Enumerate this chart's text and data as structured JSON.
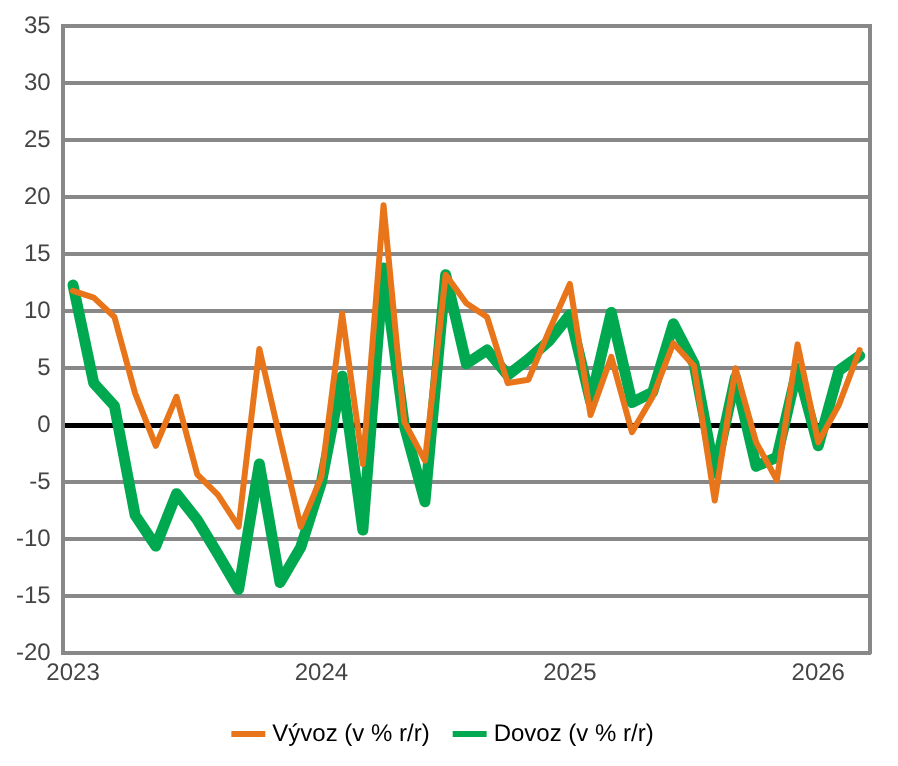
{
  "chart_data": {
    "type": "line",
    "categories": [
      "2023",
      null,
      null,
      null,
      null,
      null,
      null,
      null,
      null,
      null,
      null,
      null,
      "2024",
      null,
      null,
      null,
      null,
      null,
      null,
      null,
      null,
      null,
      null,
      null,
      "2025",
      null,
      null,
      null,
      null,
      null,
      null,
      null,
      null,
      null,
      null,
      null,
      "2026",
      null,
      null
    ],
    "series": [
      {
        "name": "Vývoz (v % r/r)",
        "color": "#e8751a",
        "values": [
          11.8,
          11.2,
          9.5,
          2.8,
          -1.8,
          2.5,
          -4.3,
          -6.1,
          -8.9,
          6.7,
          -1.2,
          -8.9,
          -4.5,
          9.8,
          -3.4,
          19.3,
          0.3,
          -3.1,
          13.2,
          10.7,
          9.5,
          3.7,
          4.0,
          8.3,
          12.4,
          0.9,
          6.0,
          -0.6,
          2.5,
          7.2,
          5.2,
          -6.6,
          5.0,
          -1.5,
          -4.8,
          7.1,
          -1.5,
          1.8,
          6.6
        ]
      },
      {
        "name": "Dovoz (v % r/r)",
        "color": "#00a84f",
        "values": [
          12.3,
          3.7,
          1.7,
          -7.9,
          -10.6,
          -6.0,
          -8.3,
          -11.3,
          -14.4,
          -3.4,
          -13.8,
          -10.7,
          -5.0,
          4.3,
          -9.2,
          13.8,
          0.0,
          -6.7,
          13.2,
          5.4,
          6.6,
          4.4,
          5.8,
          7.4,
          9.7,
          2.1,
          9.9,
          2.0,
          2.9,
          8.9,
          5.4,
          -4.2,
          4.2,
          -3.6,
          -2.8,
          5.0,
          -1.8,
          4.8,
          6.1
        ]
      }
    ],
    "ylim": [
      -20,
      35
    ],
    "yticks": [
      -20,
      -15,
      -10,
      -5,
      0,
      5,
      10,
      15,
      20,
      25,
      30,
      35
    ],
    "grid": "y",
    "legend": "bottom",
    "marker": "none",
    "line_style": "solid"
  }
}
